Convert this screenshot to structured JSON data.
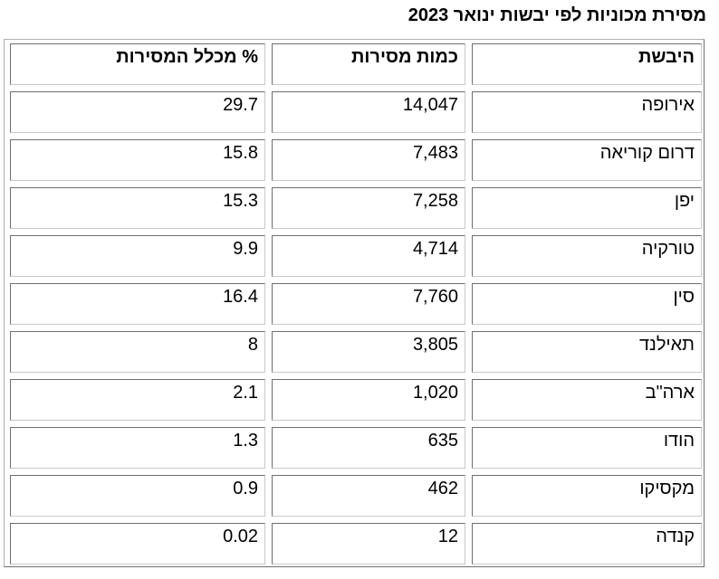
{
  "title": "מסירת מכוניות לפי יבשות ינואר 2023",
  "headers": {
    "region": "היבשת",
    "quantity": "כמות מסירות",
    "percent": "% מכלל המסירות"
  },
  "rows": [
    {
      "region": "אירופה",
      "quantity": "14,047",
      "percent": "29.7"
    },
    {
      "region": "דרום קוריאה",
      "quantity": "7,483",
      "percent": "15.8"
    },
    {
      "region": "יפן",
      "quantity": "7,258",
      "percent": "15.3"
    },
    {
      "region": "טורקיה",
      "quantity": "4,714",
      "percent": "9.9"
    },
    {
      "region": "סין",
      "quantity": "7,760",
      "percent": "16.4"
    },
    {
      "region": "תאילנד",
      "quantity": "3,805",
      "percent": "8"
    },
    {
      "region": "ארה\"ב",
      "quantity": "1,020",
      "percent": "2.1"
    },
    {
      "region": "הודו",
      "quantity": "635",
      "percent": "1.3"
    },
    {
      "region": "מקסיקו",
      "quantity": "462",
      "percent": "0.9"
    },
    {
      "region": "קנדה",
      "quantity": "12",
      "percent": "0.02"
    }
  ]
}
